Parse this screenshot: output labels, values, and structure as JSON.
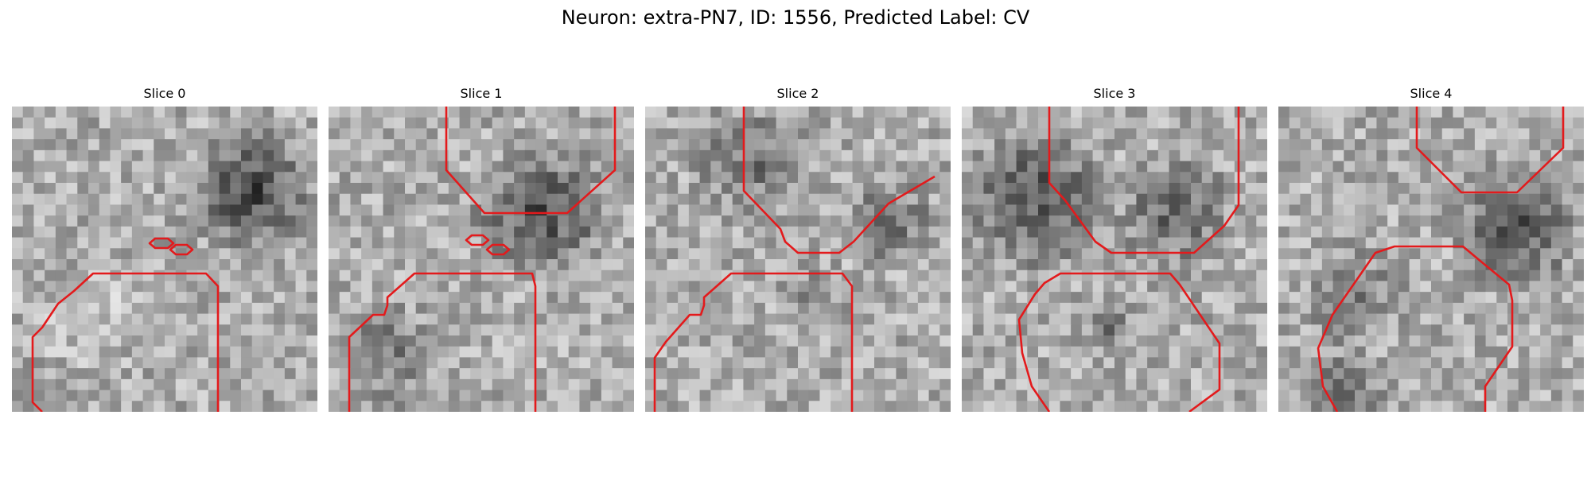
{
  "figure": {
    "title": "Neuron: extra-PN7, ID: 1556, Predicted Label: CV"
  },
  "panels": [
    {
      "title": "Slice 0",
      "outline_color": "#e31a1c"
    },
    {
      "title": "Slice 1",
      "outline_color": "#e31a1c"
    },
    {
      "title": "Slice 2",
      "outline_color": "#e31a1c"
    },
    {
      "title": "Slice 3",
      "outline_color": "#e31a1c"
    },
    {
      "title": "Slice 4",
      "outline_color": "#e31a1c"
    }
  ],
  "colormap": "gray"
}
